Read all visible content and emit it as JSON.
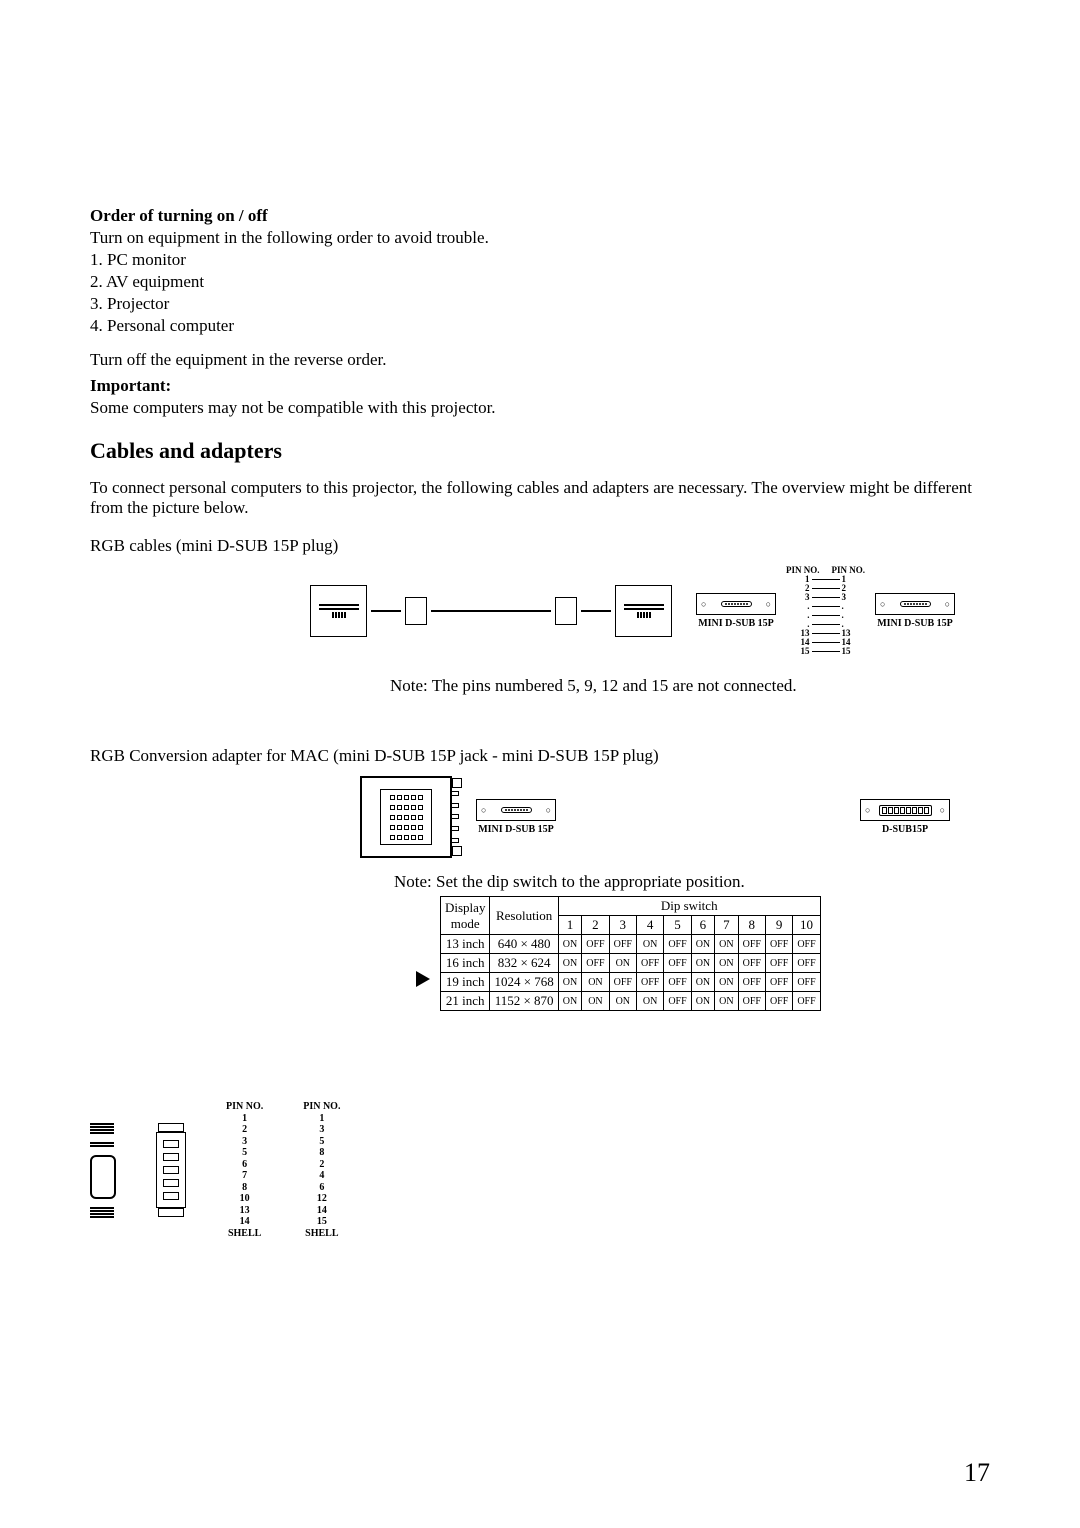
{
  "order_head": "Order of turning on / off",
  "order_intro": "Turn on equipment in the following order to avoid trouble.",
  "order_items": [
    "1.  PC monitor",
    "2.  AV equipment",
    "3.  Projector",
    "4.  Personal computer"
  ],
  "order_off": "Turn off the equipment in the reverse order.",
  "important_head": "Important:",
  "important_body": "Some computers may not be compatible with this projector.",
  "cables_head": "Cables and adapters",
  "cables_intro": "To connect personal computers to this projector, the following cables and adapters are necessary.  The overview might be different from the picture below.",
  "rgb_label": "RGB cables  (mini D-SUB 15P plug)",
  "mini_dsub": "MINI D-SUB 15P",
  "dsub15p": "D-SUB15P",
  "pin_no": "PIN NO.",
  "note_pins": "Note:   The pins numbered 5, 9, 12 and 15 are not connected.",
  "mac_label": "RGB Conversion adapter for MAC (mini D-SUB 15P jack - mini D-SUB 15P plug)",
  "dip_note": "Note:    Set the dip switch to the appropriate position.",
  "dip_headers": {
    "display": "Display",
    "mode": "mode",
    "resolution": "Resolution",
    "dipswitch": "Dip switch"
  },
  "dip_cols": [
    "1",
    "2",
    "3",
    "4",
    "5",
    "6",
    "7",
    "8",
    "9",
    "10"
  ],
  "dip_rows": [
    {
      "mode": "13 inch",
      "res": "640 × 480",
      "sw": [
        "ON",
        "OFF",
        "OFF",
        "ON",
        "OFF",
        "ON",
        "ON",
        "OFF",
        "OFF",
        "OFF"
      ],
      "bold": false
    },
    {
      "mode": "16 inch",
      "res": "832 × 624",
      "sw": [
        "ON",
        "OFF",
        "ON",
        "OFF",
        "OFF",
        "ON",
        "ON",
        "OFF",
        "OFF",
        "OFF"
      ],
      "bold": false
    },
    {
      "mode": "19 inch",
      "res": "1024 × 768",
      "sw": [
        "ON",
        "ON",
        "OFF",
        "OFF",
        "OFF",
        "ON",
        "ON",
        "OFF",
        "OFF",
        "OFF"
      ],
      "bold": true
    },
    {
      "mode": "21 inch",
      "res": "1152 × 870",
      "sw": [
        "ON",
        "ON",
        "ON",
        "ON",
        "OFF",
        "ON",
        "ON",
        "OFF",
        "OFF",
        "OFF"
      ],
      "bold": false
    }
  ],
  "pinmap_upper_left": [
    "1",
    "2",
    "3",
    ".",
    ".",
    ".",
    "13",
    "14",
    "15"
  ],
  "pinmap_upper_right": [
    "1",
    "2",
    "3",
    ".",
    ".",
    ".",
    "13",
    "14",
    "15"
  ],
  "lower_pin_left": [
    "PIN NO.",
    "1",
    "2",
    "3",
    "5",
    "6",
    "7",
    "8",
    "10",
    "13",
    "14",
    "SHELL"
  ],
  "lower_pin_right": [
    "PIN NO.",
    "1",
    "3",
    "5",
    "8",
    "2",
    "4",
    "6",
    "12",
    "14",
    "15",
    "SHELL"
  ],
  "page_num": "17"
}
